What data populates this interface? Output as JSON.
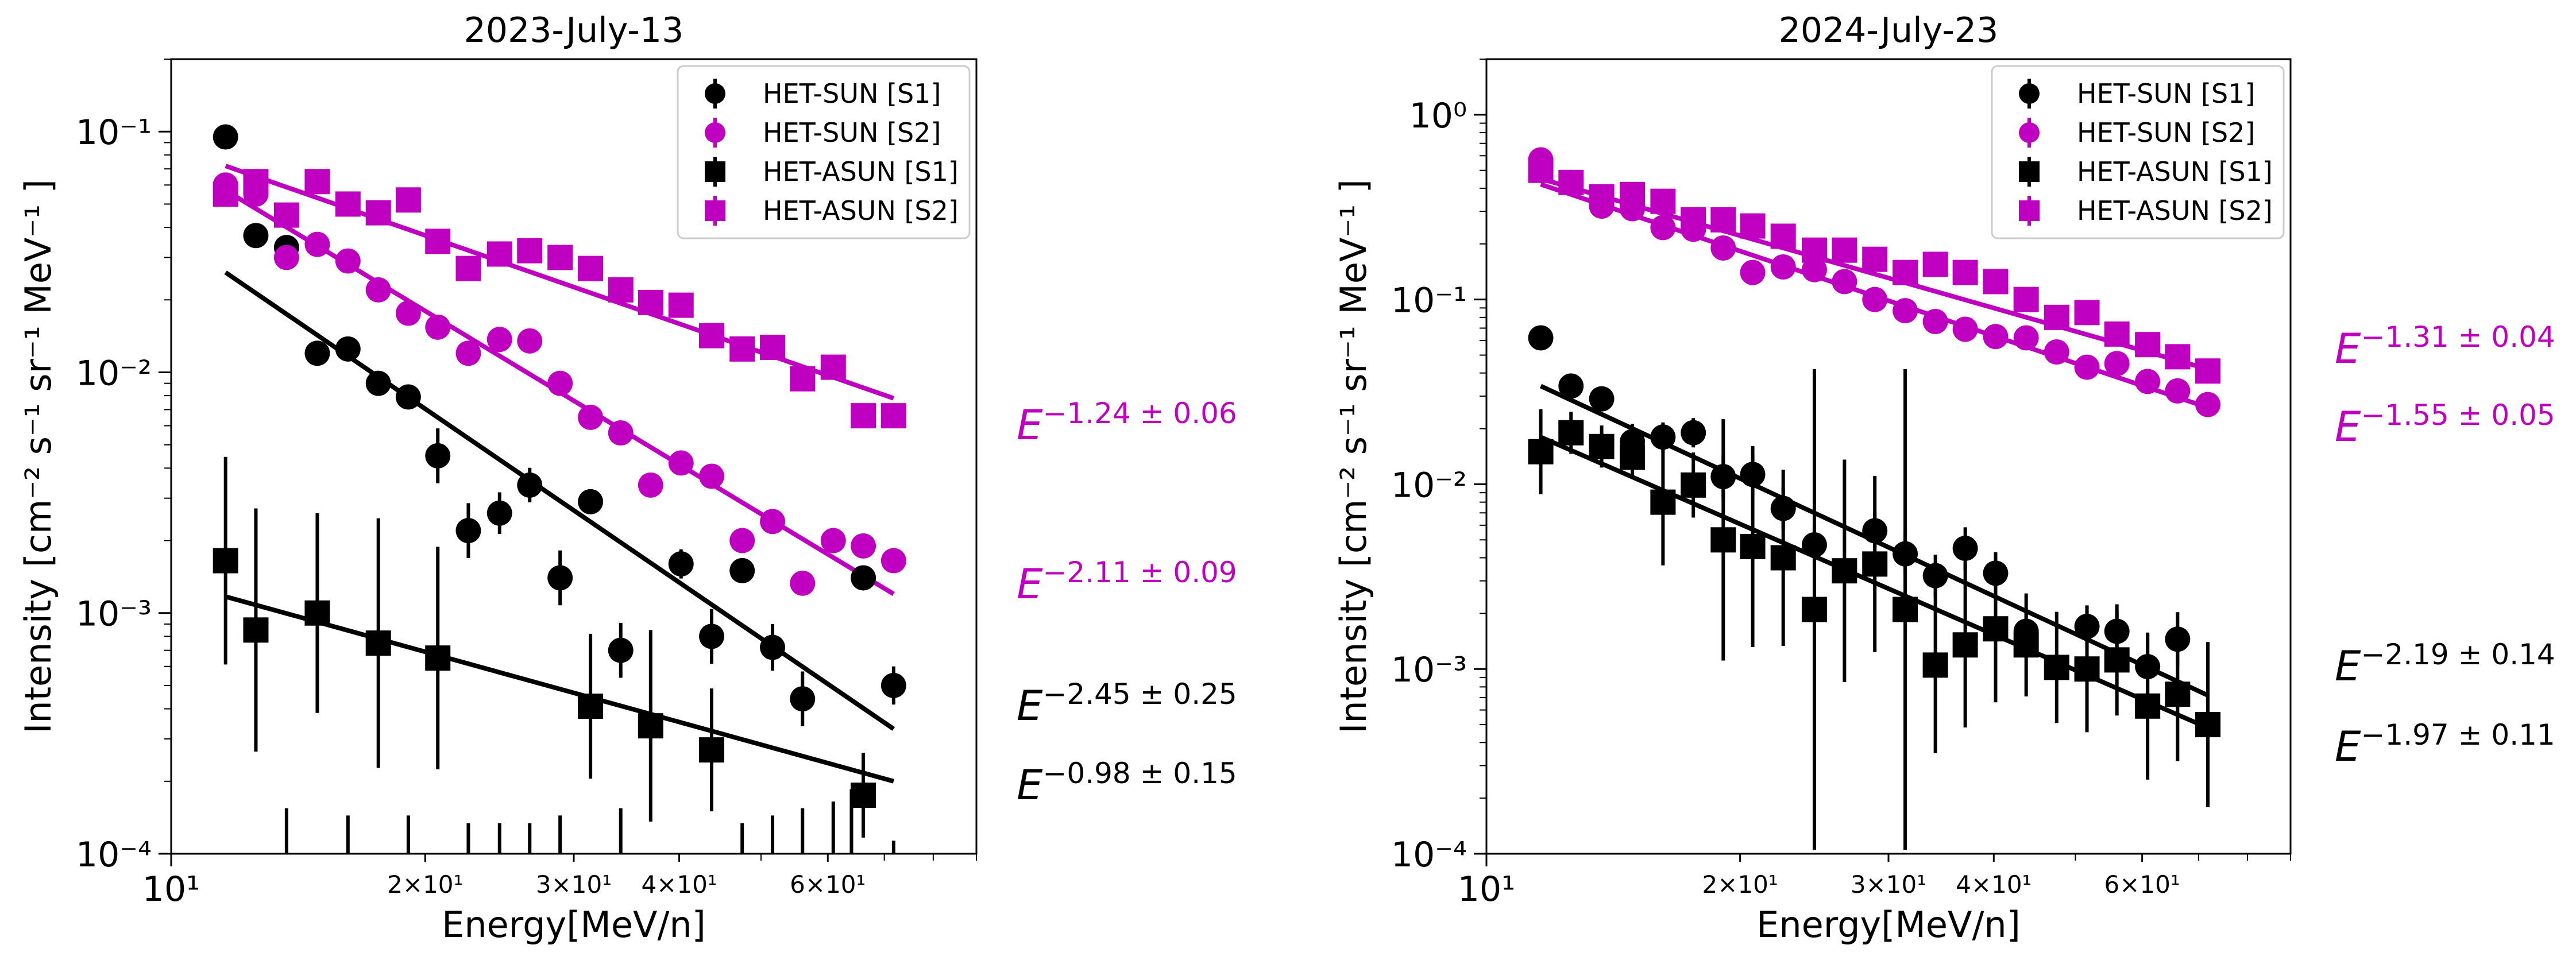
{
  "chart_data": [
    {
      "type": "scatter",
      "title": "2023-July-13",
      "xlabel": "Energy[MeV/n]",
      "ylabel": "Intensity [cm⁻² s⁻¹ sr⁻¹ MeV⁻¹ ]",
      "xscale": "log",
      "yscale": "log",
      "xlim": [
        10,
        90
      ],
      "ylim": [
        0.0001,
        0.2
      ],
      "grid": false,
      "legend_position": "top-right",
      "x_tick_labels": [
        "10¹",
        "2×10¹",
        "3×10¹",
        "4×10¹",
        "6×10¹"
      ],
      "y_tick_labels": [
        "10⁻⁴",
        "10⁻³",
        "10⁻²",
        "10⁻¹"
      ],
      "series": [
        {
          "name": "HET-SUN [S1]",
          "marker": "circle",
          "color": "#000000",
          "x": [
            11.6,
            12.6,
            13.7,
            14.9,
            16.2,
            17.6,
            19.1,
            20.7,
            22.5,
            24.5,
            26.6,
            28.9,
            31.4,
            34.1,
            37.0,
            40.2,
            43.7,
            47.5,
            51.6,
            56.0,
            60.9,
            66.1,
            71.8
          ],
          "y": [
            0.095,
            0.037,
            0.033,
            0.012,
            0.0125,
            0.009,
            0.0079,
            0.0045,
            0.0022,
            0.0026,
            0.0034,
            0.0014,
            0.0029,
            0.0007,
            null,
            0.0016,
            0.0008,
            0.0015,
            0.00072,
            0.00044,
            null,
            0.0014,
            0.0005
          ],
          "err_factor": [
            1.05,
            1.05,
            1.05,
            1.12,
            1.1,
            1.12,
            1.12,
            1.3,
            1.3,
            1.22,
            1.18,
            1.3,
            1.12,
            1.3,
            null,
            1.15,
            1.3,
            1.12,
            1.25,
            1.3,
            null,
            1.08,
            1.2
          ]
        },
        {
          "name": "HET-SUN [S2]",
          "marker": "circle",
          "color": "#c000c0",
          "x": [
            11.6,
            12.6,
            13.7,
            14.9,
            16.2,
            17.6,
            19.1,
            20.7,
            22.5,
            24.5,
            26.6,
            28.9,
            31.4,
            34.1,
            37.0,
            40.2,
            43.7,
            47.5,
            51.6,
            56.0,
            60.9,
            66.1,
            71.8
          ],
          "y": [
            0.06,
            0.055,
            0.03,
            0.034,
            0.029,
            0.022,
            0.0176,
            0.0154,
            0.012,
            0.0137,
            0.0135,
            0.009,
            0.0065,
            0.0056,
            0.0034,
            0.0042,
            0.0037,
            0.002,
            0.0024,
            0.00133,
            0.002,
            0.0019,
            0.00165
          ]
        },
        {
          "name": "HET-ASUN [S1]",
          "marker": "square",
          "color": "#000000",
          "x": [
            11.6,
            12.6,
            14.9,
            17.6,
            20.7,
            31.4,
            37.0,
            43.7,
            66.1
          ],
          "y": [
            0.00165,
            0.00085,
            0.001,
            0.00075,
            0.00065,
            0.00041,
            0.00034,
            0.00027,
            0.000175
          ],
          "err_factor": [
            2.7,
            3.2,
            2.6,
            3.3,
            2.9,
            2.0,
            2.5,
            1.8,
            1.5
          ]
        },
        {
          "name": "HET-ASUN [S2]",
          "marker": "square",
          "color": "#c000c0",
          "x": [
            11.6,
            12.6,
            13.7,
            14.9,
            16.2,
            17.6,
            19.1,
            20.7,
            22.5,
            24.5,
            26.6,
            28.9,
            31.4,
            34.1,
            37.0,
            40.2,
            43.7,
            47.5,
            51.6,
            56.0,
            60.9,
            66.1,
            71.8
          ],
          "y": [
            0.055,
            0.062,
            0.045,
            0.062,
            0.05,
            0.046,
            0.052,
            0.035,
            0.027,
            0.031,
            0.032,
            0.03,
            0.027,
            0.022,
            0.0195,
            0.019,
            0.0142,
            0.0125,
            0.0127,
            0.0094,
            0.0105,
            0.0066,
            0.0066
          ]
        }
      ],
      "hidden_error_bars": [
        {
          "x": 64.0,
          "y": 0.000103,
          "err_factor": 1.8
        },
        {
          "x": 60.9,
          "y": 0.000103,
          "err_factor": 1.6
        },
        {
          "x": 56.0,
          "y": 0.000103,
          "err_factor": 1.5
        },
        {
          "x": 51.6,
          "y": 0.000103,
          "err_factor": 1.4
        },
        {
          "x": 47.5,
          "y": 0.000103,
          "err_factor": 1.3
        },
        {
          "x": 34.1,
          "y": 0.000103,
          "err_factor": 1.5
        },
        {
          "x": 28.9,
          "y": 0.000103,
          "err_factor": 1.4
        },
        {
          "x": 26.6,
          "y": 0.000103,
          "err_factor": 1.3
        },
        {
          "x": 24.5,
          "y": 0.000103,
          "err_factor": 1.3
        },
        {
          "x": 22.5,
          "y": 0.000103,
          "err_factor": 1.3
        },
        {
          "x": 19.1,
          "y": 0.000103,
          "err_factor": 1.4
        },
        {
          "x": 16.2,
          "y": 0.000103,
          "err_factor": 1.4
        },
        {
          "x": 13.7,
          "y": 0.000103,
          "err_factor": 1.5
        },
        {
          "x": 71.8,
          "y": 0.000103,
          "err_factor": 1.1
        }
      ],
      "fits": [
        {
          "color": "#c000c0",
          "x": [
            11.6,
            71.8
          ],
          "y": [
            0.072,
            0.0078
          ],
          "label_base": "E",
          "label_exp": "−1.24 ± 0.06"
        },
        {
          "color": "#c000c0",
          "x": [
            11.6,
            71.8
          ],
          "y": [
            0.057,
            0.0012
          ],
          "label_base": "E",
          "label_exp": "−2.11 ± 0.09"
        },
        {
          "color": "#000000",
          "x": [
            11.6,
            71.8
          ],
          "y": [
            0.026,
            0.00033
          ],
          "label_base": "E",
          "label_exp": "−2.45 ± 0.25"
        },
        {
          "color": "#000000",
          "x": [
            11.6,
            71.8
          ],
          "y": [
            0.00117,
            0.0002
          ],
          "label_base": "E",
          "label_exp": "−0.98 ± 0.15"
        }
      ]
    },
    {
      "type": "scatter",
      "title": "2024-July-23",
      "xlabel": "Energy[MeV/n]",
      "ylabel": "Intensity [cm⁻² s⁻¹ sr⁻¹ MeV⁻¹ ]",
      "xscale": "log",
      "yscale": "log",
      "xlim": [
        10,
        90
      ],
      "ylim": [
        0.0001,
        2.0
      ],
      "grid": false,
      "legend_position": "top-right",
      "x_tick_labels": [
        "10¹",
        "2×10¹",
        "3×10¹",
        "4×10¹",
        "6×10¹"
      ],
      "y_tick_labels": [
        "10⁻⁴",
        "10⁻³",
        "10⁻²",
        "10⁻¹",
        "10⁰"
      ],
      "series": [
        {
          "name": "HET-SUN [S1]",
          "marker": "circle",
          "color": "#000000",
          "x": [
            11.6,
            12.6,
            13.7,
            14.9,
            16.2,
            17.6,
            19.1,
            20.7,
            22.5,
            24.5,
            28.9,
            31.4,
            34.1,
            37.0,
            40.2,
            43.7,
            51.6,
            56.0,
            60.9,
            66.1
          ],
          "y": [
            0.062,
            0.034,
            0.029,
            0.017,
            0.018,
            0.019,
            0.011,
            0.0113,
            0.0074,
            0.0047,
            0.0056,
            0.0042,
            0.0032,
            0.0045,
            0.0033,
            0.0016,
            0.0017,
            0.0016,
            0.00103,
            0.00145
          ],
          "err_factor": [
            1.05,
            1.08,
            1.12,
            1.25,
            1.2,
            1.2,
            1.3,
            1.3,
            1.3,
            1.3,
            1.25,
            1.3,
            1.3,
            1.3,
            1.3,
            1.3,
            1.3,
            1.3,
            1.5,
            1.4
          ]
        },
        {
          "name": "HET-SUN [S2]",
          "marker": "circle",
          "color": "#c000c0",
          "x": [
            11.6,
            12.6,
            13.7,
            14.9,
            16.2,
            17.6,
            19.1,
            20.7,
            22.5,
            24.5,
            26.6,
            28.9,
            31.4,
            34.1,
            37.0,
            40.2,
            43.7,
            47.5,
            51.6,
            56.0,
            60.9,
            66.1,
            71.8
          ],
          "y": [
            0.57,
            0.43,
            0.32,
            0.31,
            0.245,
            0.24,
            0.19,
            0.14,
            0.15,
            0.145,
            0.125,
            0.1,
            0.087,
            0.076,
            0.069,
            0.063,
            0.062,
            0.052,
            0.043,
            0.045,
            0.036,
            0.032,
            0.027
          ]
        },
        {
          "name": "HET-ASUN [S1]",
          "marker": "square",
          "color": "#000000",
          "x": [
            11.6,
            12.6,
            13.7,
            14.9,
            16.2,
            17.6,
            19.1,
            20.7,
            22.5,
            24.5,
            26.6,
            28.9,
            31.4,
            34.1,
            37.0,
            40.2,
            43.7,
            47.5,
            51.6,
            56.0,
            60.9,
            66.1,
            71.8
          ],
          "y": [
            0.015,
            0.019,
            0.016,
            0.014,
            0.008,
            0.0099,
            0.005,
            0.0046,
            0.004,
            0.0021,
            0.0034,
            0.0037,
            0.0021,
            0.00105,
            0.00135,
            0.00165,
            0.00135,
            0.00102,
            0.001,
            0.00112,
            0.00063,
            0.00073,
            0.0005
          ],
          "err_factor": [
            1.7,
            1.3,
            1.3,
            1.3,
            2.2,
            1.5,
            4.5,
            3.5,
            3.0,
            20.0,
            4.0,
            3.0,
            20.0,
            3.0,
            2.8,
            2.5,
            1.9,
            2.0,
            2.2,
            2.0,
            2.5,
            2.3,
            2.8
          ]
        },
        {
          "name": "HET-ASUN [S2]",
          "marker": "square",
          "color": "#c000c0",
          "x": [
            11.6,
            12.6,
            13.7,
            14.9,
            16.2,
            17.6,
            19.1,
            20.7,
            22.5,
            24.5,
            26.6,
            28.9,
            31.4,
            34.1,
            37.0,
            40.2,
            43.7,
            47.5,
            51.6,
            56.0,
            60.9,
            66.1,
            71.8
          ],
          "y": [
            0.5,
            0.43,
            0.36,
            0.37,
            0.34,
            0.27,
            0.27,
            0.25,
            0.22,
            0.185,
            0.185,
            0.165,
            0.14,
            0.155,
            0.14,
            0.125,
            0.1,
            0.08,
            0.085,
            0.065,
            0.057,
            0.049,
            0.041
          ]
        }
      ],
      "hidden_error_bars": [],
      "fits": [
        {
          "color": "#c000c0",
          "x": [
            11.6,
            71.8
          ],
          "y": [
            0.45,
            0.042
          ],
          "label_base": "E",
          "label_exp": "−1.31 ± 0.04"
        },
        {
          "color": "#c000c0",
          "x": [
            11.6,
            71.8
          ],
          "y": [
            0.42,
            0.026
          ],
          "label_base": "E",
          "label_exp": "−1.55 ± 0.05"
        },
        {
          "color": "#000000",
          "x": [
            11.6,
            71.8
          ],
          "y": [
            0.034,
            0.00072
          ],
          "label_base": "E",
          "label_exp": "−2.19 ± 0.14"
        },
        {
          "color": "#000000",
          "x": [
            11.6,
            71.8
          ],
          "y": [
            0.018,
            0.00048
          ],
          "label_base": "E",
          "label_exp": "−1.97 ± 0.11"
        }
      ]
    }
  ]
}
